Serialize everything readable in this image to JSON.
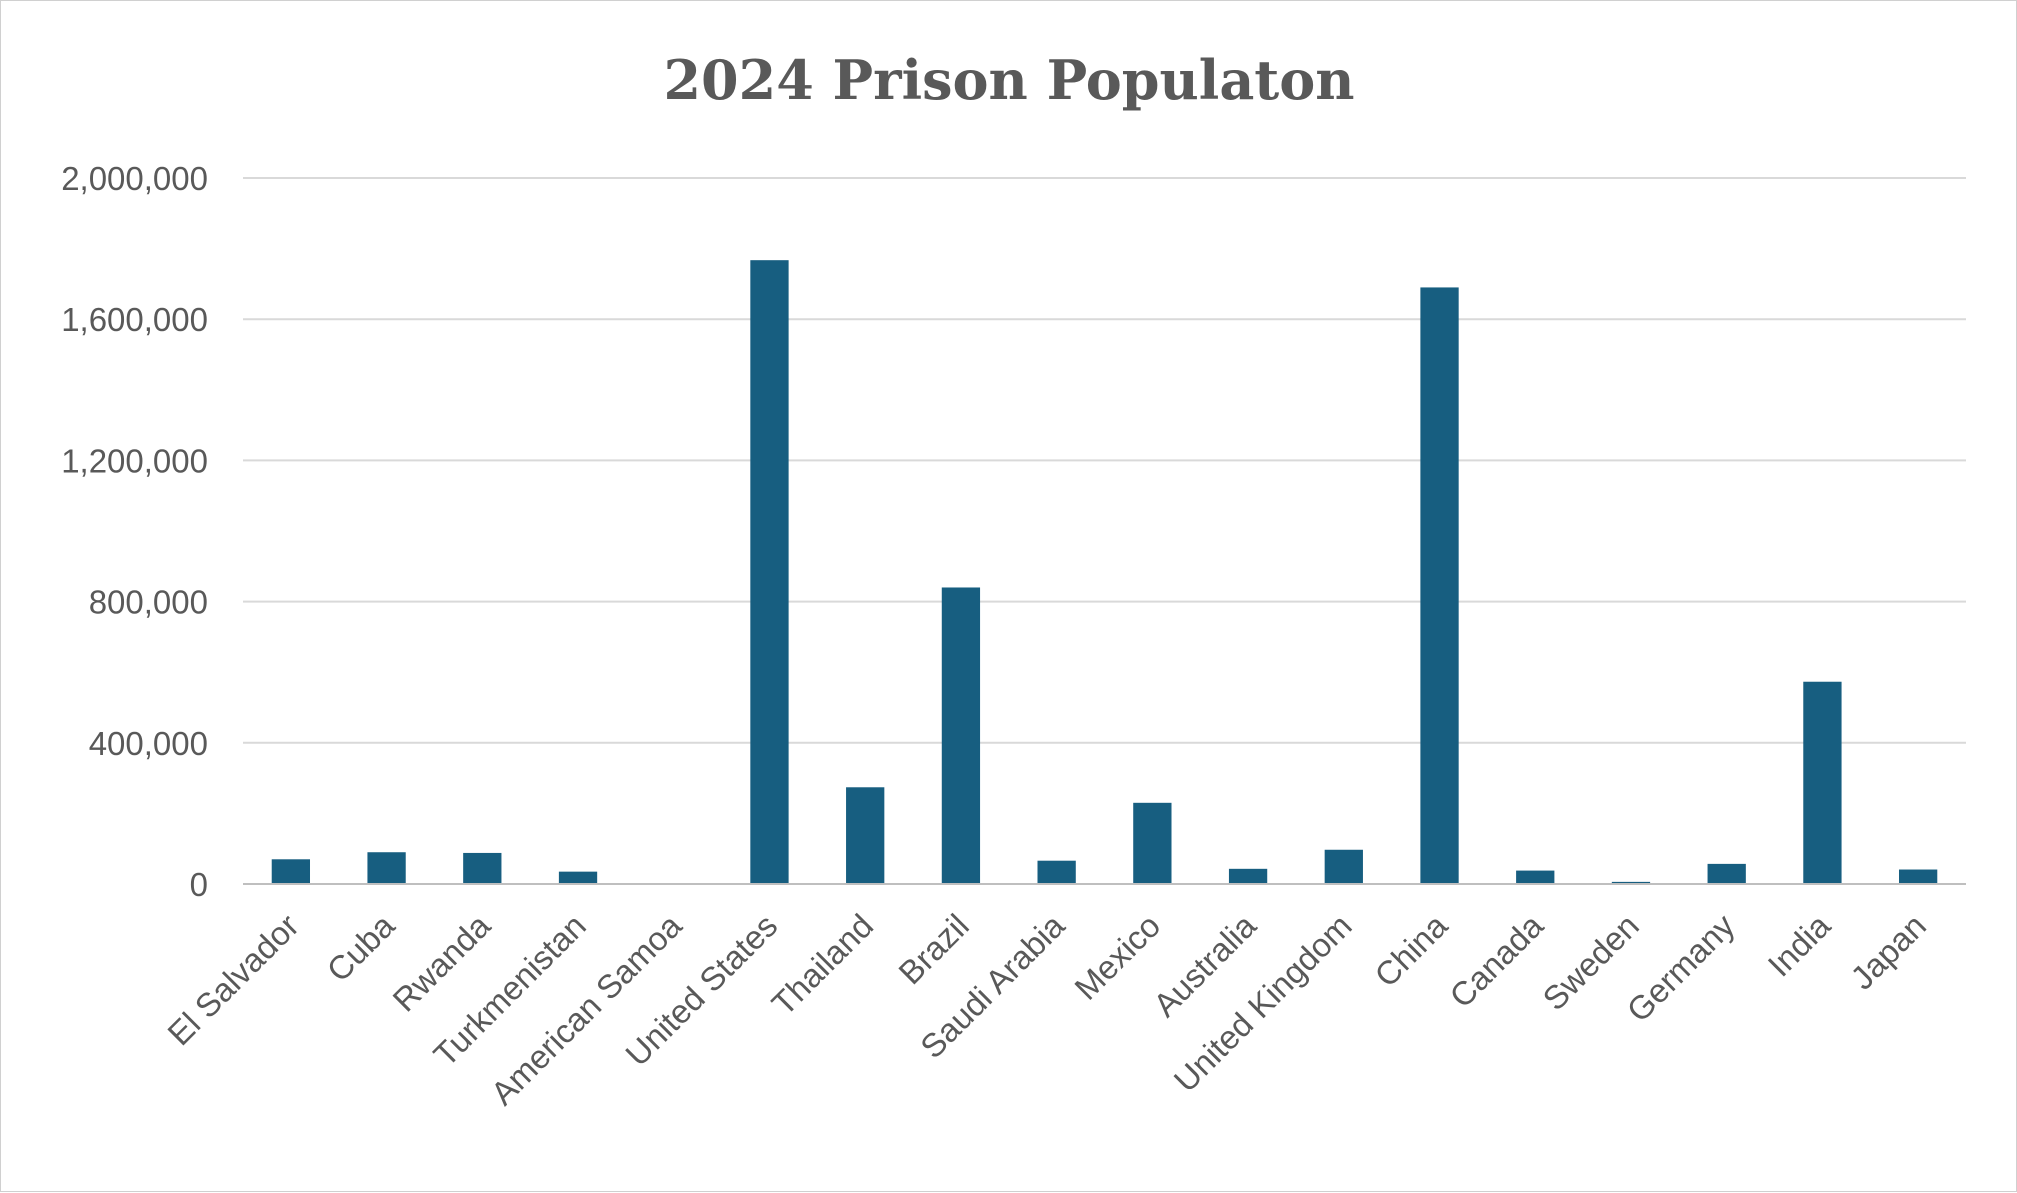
{
  "chart_data": {
    "type": "bar",
    "title": "2024 Prison Populaton",
    "xlabel": "",
    "ylabel": "",
    "categories": [
      "El Salvador",
      "Cuba",
      "Rwanda",
      "Turkmenistan",
      "American Samoa",
      "United States",
      "Thailand",
      "Brazil",
      "Saudi Arabia",
      "Mexico",
      "Australia",
      "United Kingdom",
      "China",
      "Canada",
      "Sweden",
      "Germany",
      "India",
      "Japan"
    ],
    "values": [
      70000,
      90000,
      88000,
      35000,
      300,
      1767200,
      274000,
      840000,
      66000,
      230000,
      43000,
      97000,
      1690000,
      38000,
      6000,
      57000,
      573000,
      41000
    ],
    "ylim": [
      0,
      2000000
    ],
    "yticks": [
      0,
      400000,
      800000,
      1200000,
      1600000,
      2000000
    ],
    "ytick_labels": [
      "0",
      "400,000",
      "800,000",
      "1,200,000",
      "1,600,000",
      "2,000,000"
    ],
    "grid": true,
    "legend": "none",
    "colors": {
      "bar": "#175e80",
      "grid": "#d9d9d9",
      "text": "#595959"
    }
  }
}
